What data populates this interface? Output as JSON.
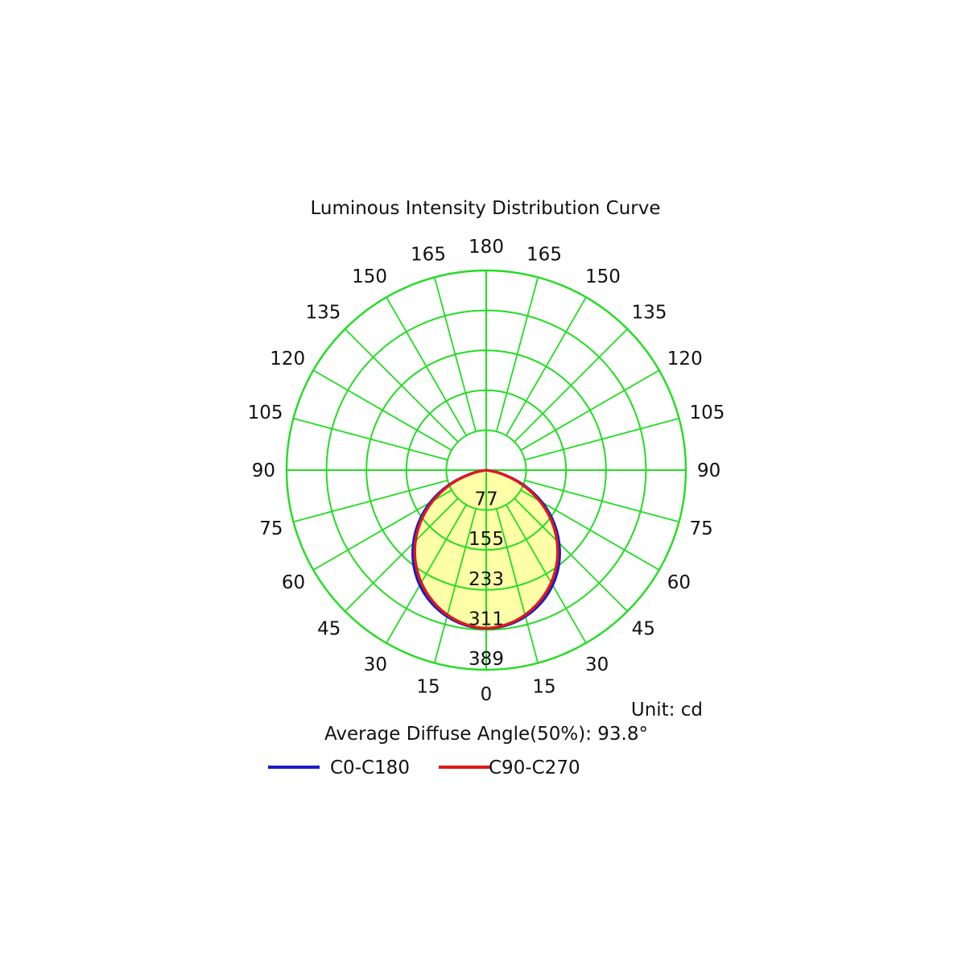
{
  "chart_data": {
    "type": "polar",
    "title": "Luminous Intensity Distribution Curve",
    "unit_label": "Unit: cd",
    "note": "Average Diffuse Angle(50%): 93.8°",
    "ring_values": [
      "77",
      "155",
      "233",
      "311",
      "389"
    ],
    "r_max": 389,
    "angle_labels_left": [
      "0",
      "15",
      "30",
      "45",
      "60",
      "75",
      "90",
      "105",
      "120",
      "135",
      "150",
      "165",
      "180"
    ],
    "angle_labels_right": [
      "15",
      "30",
      "45",
      "60",
      "75",
      "90",
      "105",
      "120",
      "135",
      "150",
      "165"
    ],
    "angle_step_deg": 15,
    "grid_color": "#22dd22",
    "fill_color": "#ffffa8",
    "series": [
      {
        "name": "C0-C180",
        "color": "#1a1acc",
        "angles_deg": [
          0,
          10,
          20,
          30,
          40,
          50,
          60,
          70,
          80,
          90
        ],
        "values": [
          311,
          305,
          288,
          262,
          226,
          182,
          132,
          78,
          28,
          0
        ]
      },
      {
        "name": "C90-C270",
        "color": "#dd1a1a",
        "angles_deg": [
          0,
          10,
          20,
          30,
          40,
          50,
          60,
          70,
          80,
          90
        ],
        "values": [
          311,
          303,
          284,
          256,
          220,
          176,
          126,
          74,
          26,
          0
        ]
      }
    ],
    "legend_placement": "bottom"
  }
}
